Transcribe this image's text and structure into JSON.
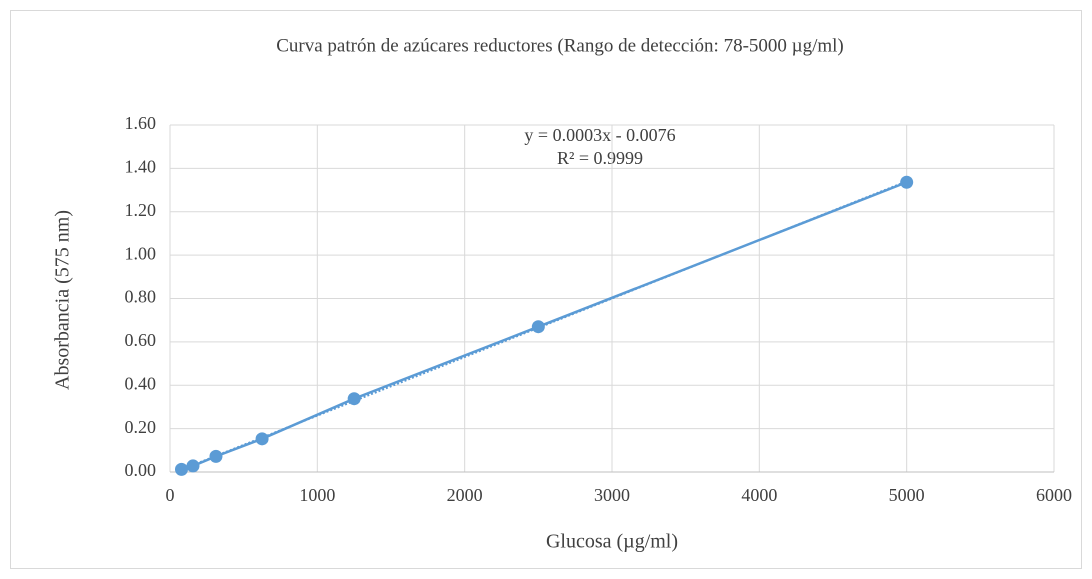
{
  "chart_data": {
    "type": "scatter",
    "title": "Curva patrón de azúcares reductores (Rango de detección: 78-5000 µg/ml)",
    "xlabel": "Glucosa (µg/ml)",
    "ylabel": "Absorbancia (575 nm)",
    "x": [
      78,
      156,
      312,
      625,
      1250,
      2500,
      5000
    ],
    "values": [
      0.012,
      0.028,
      0.072,
      0.153,
      0.338,
      0.67,
      1.336
    ],
    "color": "#5b9bd5",
    "xlim": [
      0,
      6000
    ],
    "xticks": [
      0,
      1000,
      2000,
      3000,
      4000,
      5000,
      6000
    ],
    "ylim": [
      0,
      1.6
    ],
    "yticks": [
      {
        "value": 0,
        "label": "0.00"
      },
      {
        "value": 0.2,
        "label": "0.20"
      },
      {
        "value": 0.4,
        "label": "0.40"
      },
      {
        "value": 0.6,
        "label": "0.60"
      },
      {
        "value": 0.8,
        "label": "0.80"
      },
      {
        "value": 1.0,
        "label": "1.00"
      },
      {
        "value": 1.2,
        "label": "1.20"
      },
      {
        "value": 1.4,
        "label": "1.40"
      },
      {
        "value": 1.6,
        "label": "1.60"
      }
    ],
    "grid": true,
    "annotations": [
      "y = 0.0003x - 0.0076",
      "R² = 0.9999"
    ]
  }
}
